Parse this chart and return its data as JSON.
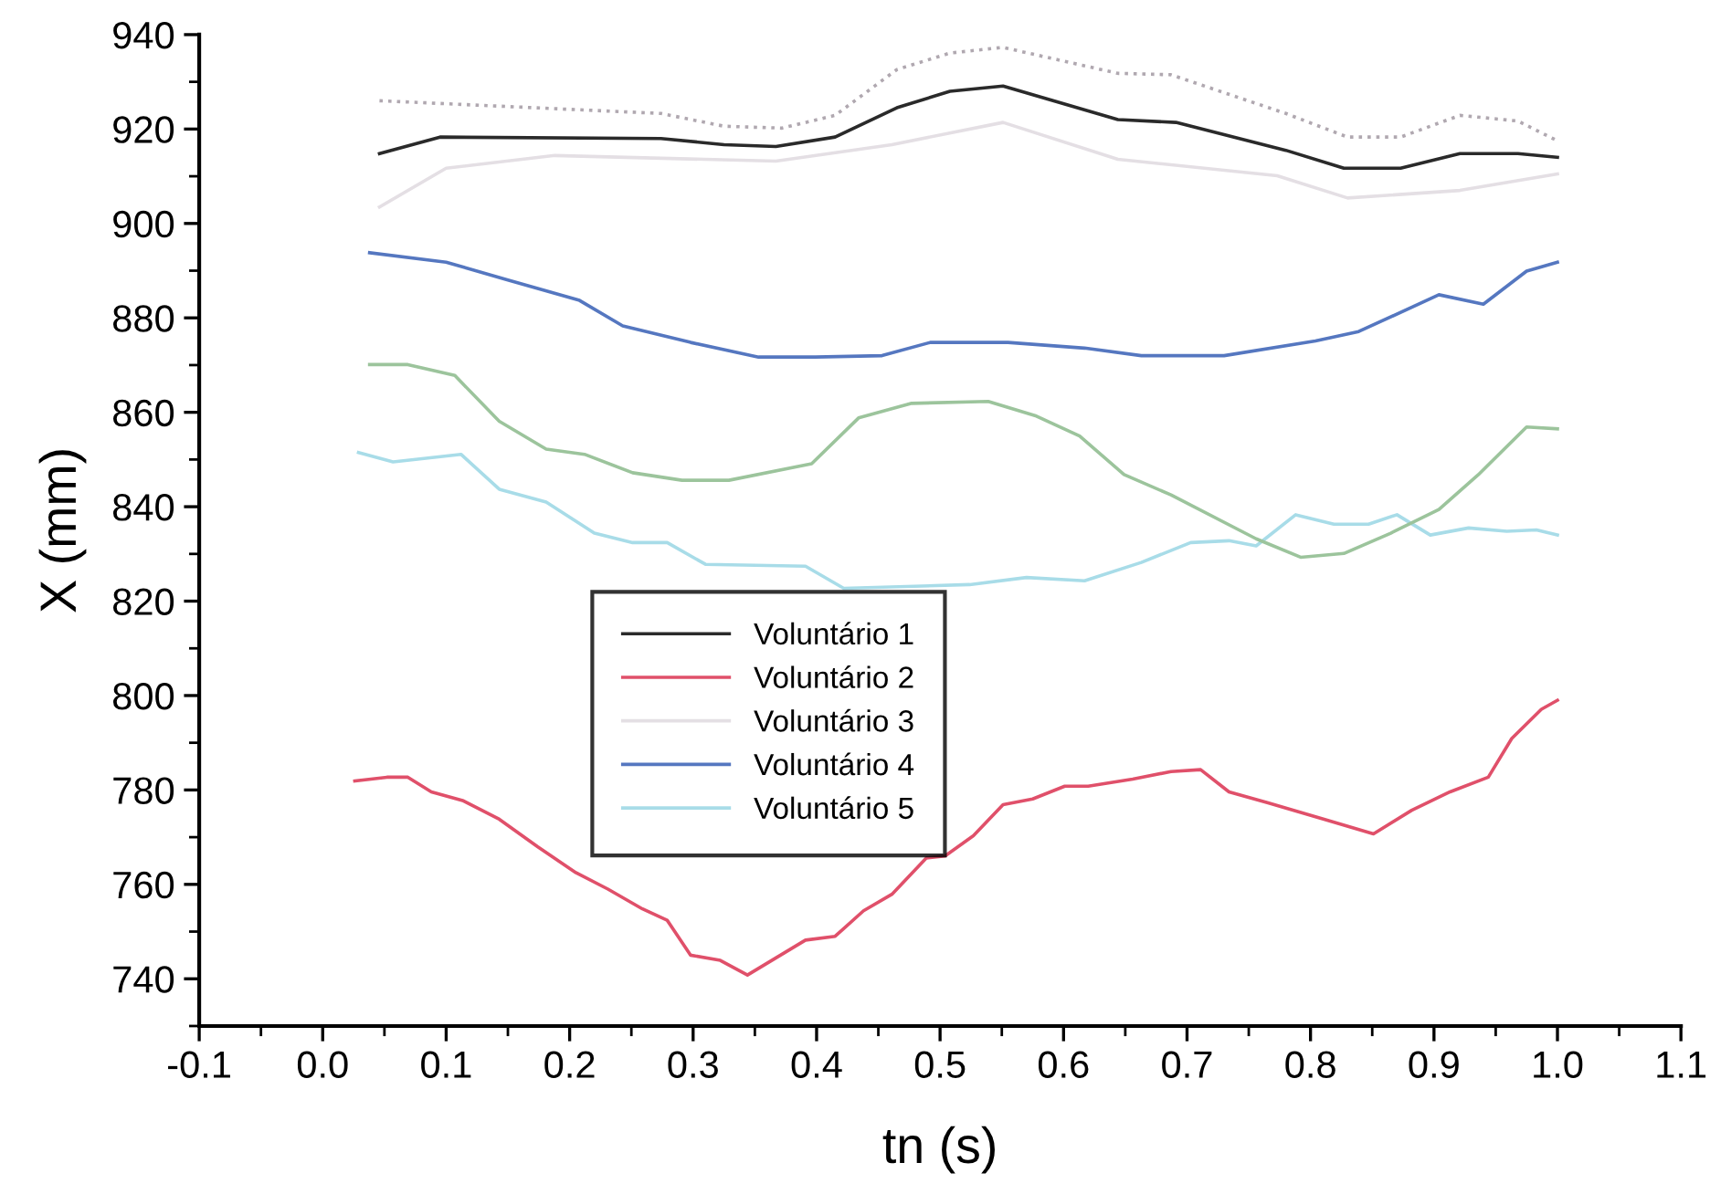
{
  "chart_data": {
    "type": "line",
    "xlabel": "tn (s)",
    "ylabel": "X (mm)",
    "xlim": [
      -0.1,
      1.1
    ],
    "xticks": [
      {
        "value": -0.1,
        "label": "-0.1"
      },
      {
        "value": 0,
        "label": "0.0"
      },
      0.1,
      0.2,
      0.3,
      0.4,
      0.5,
      0.6,
      0.7,
      0.8,
      0.9,
      {
        "value": 1,
        "label": "1.0"
      },
      1.1
    ],
    "ylim": [
      730,
      940
    ],
    "yticks": [
      740,
      760,
      780,
      800,
      820,
      840,
      860,
      880,
      900,
      920,
      940
    ],
    "grid": false,
    "legend": "center left",
    "marker": "none",
    "series": [
      {
        "name": "Voluntário 1",
        "color": "#2a2a2a",
        "x": [
          0.046,
          0.095,
          0.274,
          0.325,
          0.367,
          0.415,
          0.465,
          0.508,
          0.551,
          0.644,
          0.691,
          0.78,
          0.827,
          0.873,
          0.921,
          0.968,
          1.0
        ],
        "values": [
          914.8,
          918.3,
          918,
          916.7,
          916.3,
          918.3,
          924.5,
          928,
          929.1,
          922,
          921.4,
          915.5,
          911.7,
          911.7,
          914.8,
          914.8,
          914
        ]
      },
      {
        "name": "Voluntário 2",
        "color": "#e0506a",
        "x": [
          0.026,
          0.052,
          0.069,
          0.088,
          0.114,
          0.143,
          0.174,
          0.205,
          0.231,
          0.259,
          0.279,
          0.298,
          0.322,
          0.344,
          0.391,
          0.415,
          0.438,
          0.461,
          0.489,
          0.504,
          0.527,
          0.551,
          0.575,
          0.601,
          0.62,
          0.656,
          0.687,
          0.711,
          0.734,
          0.765,
          0.811,
          0.851,
          0.882,
          0.913,
          0.944,
          0.963,
          0.987,
          1.0
        ],
        "values": [
          781.9,
          782.7,
          782.7,
          779.6,
          777.7,
          773.8,
          768,
          762.5,
          759,
          754.8,
          752.4,
          745,
          743.9,
          740.8,
          748.2,
          749,
          754.4,
          757.9,
          765.6,
          766,
          770.3,
          776.9,
          778.1,
          780.8,
          780.8,
          782.3,
          783.9,
          784.3,
          779.6,
          777.3,
          773.8,
          770.7,
          775.7,
          779.6,
          782.7,
          790.9,
          797.1,
          799
        ]
      },
      {
        "name": "Voluntário 3",
        "color": "#e4dfe4",
        "x": [
          0.046,
          0.1,
          0.188,
          0.367,
          0.461,
          0.551,
          0.644,
          0.773,
          0.83,
          0.921,
          1.0
        ],
        "values": [
          903.5,
          911.7,
          914.4,
          913.2,
          916.7,
          921.4,
          913.6,
          910.1,
          905.4,
          907,
          910.5
        ]
      },
      {
        "name": "Voluntário 4",
        "color": "#5577c0",
        "x": [
          0.038,
          0.1,
          0.15,
          0.208,
          0.243,
          0.298,
          0.353,
          0.399,
          0.453,
          0.492,
          0.555,
          0.617,
          0.663,
          0.73,
          0.804,
          0.839,
          0.904,
          0.94,
          0.975,
          1.0
        ],
        "values": [
          893.8,
          891.8,
          888,
          883.7,
          878.3,
          874.8,
          871.7,
          871.7,
          872,
          874.8,
          874.8,
          873.6,
          872,
          872,
          875.1,
          877.1,
          884.9,
          882.9,
          889.9,
          891.8
        ]
      },
      {
        "name": "Voluntário 5",
        "color": "#a8dce8",
        "x": [
          0.029,
          0.057,
          0.112,
          0.143,
          0.181,
          0.22,
          0.251,
          0.279,
          0.31,
          0.391,
          0.422,
          0.524,
          0.57,
          0.617,
          0.663,
          0.703,
          0.734,
          0.756,
          0.788,
          0.819,
          0.847,
          0.87,
          0.897,
          0.928,
          0.959,
          0.983,
          1.0
        ],
        "values": [
          851.5,
          849.5,
          851.1,
          843.7,
          841,
          834.4,
          832.4,
          832.4,
          827.8,
          827.4,
          822.7,
          823.5,
          825,
          824.3,
          828.2,
          832.4,
          832.8,
          831.7,
          838.3,
          836.3,
          836.3,
          838.3,
          834,
          835.5,
          834.8,
          835.1,
          834
        ]
      },
      {
        "color": "#b0a8b0",
        "line_style": "dotted",
        "x": [
          0.046,
          0.274,
          0.325,
          0.372,
          0.415,
          0.465,
          0.508,
          0.551,
          0.644,
          0.687,
          0.78,
          0.83,
          0.873,
          0.921,
          0.968,
          1.0
        ],
        "values": [
          926,
          923.3,
          920.6,
          920.2,
          922.9,
          932.6,
          936.1,
          937.3,
          931.8,
          931.5,
          923.3,
          918.3,
          918.3,
          922.9,
          921.7,
          917.5
        ]
      },
      {
        "color": "#9cc49c",
        "x": [
          0.038,
          0.069,
          0.107,
          0.143,
          0.181,
          0.212,
          0.251,
          0.291,
          0.329,
          0.396,
          0.434,
          0.477,
          0.539,
          0.578,
          0.613,
          0.649,
          0.687,
          0.756,
          0.792,
          0.827,
          0.865,
          0.904,
          0.936,
          0.975,
          1.0
        ],
        "values": [
          870.1,
          870.1,
          867.8,
          858.1,
          852.2,
          851.1,
          847.2,
          845.6,
          845.6,
          849.1,
          858.8,
          861.9,
          862.3,
          859.2,
          855,
          846.8,
          842.5,
          833.2,
          829.3,
          830.1,
          834.4,
          839.4,
          846.8,
          856.9,
          856.5
        ]
      }
    ]
  }
}
